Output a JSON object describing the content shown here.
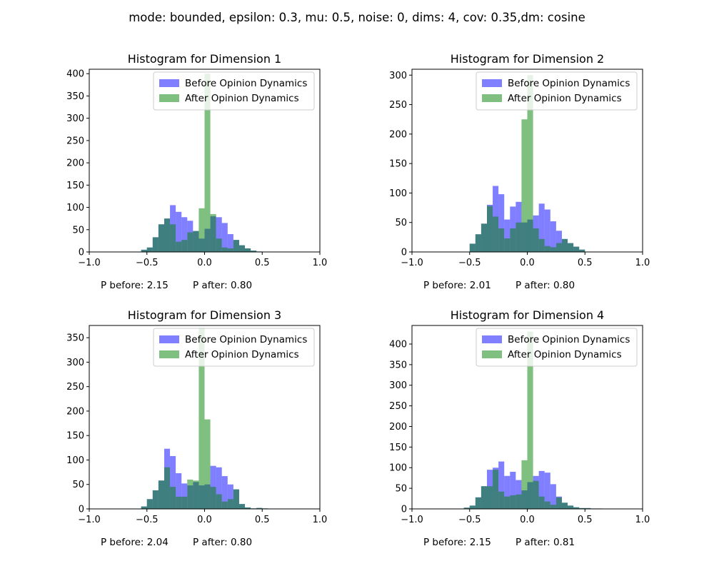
{
  "figure": {
    "suptitle": "mode: bounded, epsilon: 0.3, mu: 0.5, noise: 0, dims: 4, cov: 0.35,dm: cosine"
  },
  "colors": {
    "before": "#0000ff",
    "after": "#008000",
    "before_alpha": 0.5,
    "after_alpha": 0.5
  },
  "chart_data": [
    {
      "type": "bar",
      "title": "Histogram for Dimension 1",
      "legend": [
        "Before Opinion Dynamics",
        "After Opinion Dynamics"
      ],
      "legend_position": "top-right",
      "xlim": [
        -1.0,
        1.0
      ],
      "ylim": [
        0,
        410
      ],
      "xticks": [
        "−1.0",
        "−0.5",
        "0.0",
        "0.5",
        "1.0"
      ],
      "yticks": [
        0,
        50,
        100,
        150,
        200,
        250,
        300,
        350,
        400
      ],
      "stats": {
        "p_before": "P before: 2.15",
        "p_after": "P after: 0.80"
      },
      "before": {
        "bin_edges": [
          -0.55,
          -0.5,
          -0.45,
          -0.4,
          -0.35,
          -0.3,
          -0.25,
          -0.2,
          -0.15,
          -0.1,
          -0.05,
          0.0,
          0.05,
          0.1,
          0.15,
          0.2,
          0.25,
          0.3,
          0.35,
          0.4,
          0.45,
          0.5
        ],
        "counts": [
          5,
          10,
          33,
          62,
          75,
          105,
          90,
          78,
          70,
          47,
          30,
          52,
          80,
          78,
          65,
          40,
          27,
          15,
          8,
          3,
          1
        ]
      },
      "after": {
        "bin_edges": [
          -0.55,
          -0.5,
          -0.45,
          -0.4,
          -0.35,
          -0.3,
          -0.25,
          -0.2,
          -0.15,
          -0.1,
          -0.05,
          0.0,
          0.05,
          0.1,
          0.15,
          0.2,
          0.25,
          0.3,
          0.35,
          0.4,
          0.45,
          0.5
        ],
        "counts": [
          5,
          10,
          33,
          62,
          75,
          62,
          23,
          27,
          44,
          47,
          98,
          400,
          85,
          30,
          10,
          8,
          27,
          15,
          8,
          3,
          1
        ]
      }
    },
    {
      "type": "bar",
      "title": "Histogram for Dimension 2",
      "legend": [
        "Before Opinion Dynamics",
        "After Opinion Dynamics"
      ],
      "legend_position": "top-right",
      "xlim": [
        -1.0,
        1.0
      ],
      "ylim": [
        0,
        310
      ],
      "xticks": [
        "−1.0",
        "−0.5",
        "0.0",
        "0.5",
        "1.0"
      ],
      "yticks": [
        0,
        50,
        100,
        150,
        200,
        250,
        300
      ],
      "stats": {
        "p_before": "P before: 2.01",
        "p_after": "P after: 0.80"
      },
      "before": {
        "bin_edges": [
          -0.5,
          -0.45,
          -0.4,
          -0.35,
          -0.3,
          -0.25,
          -0.2,
          -0.15,
          -0.1,
          -0.05,
          0.0,
          0.05,
          0.1,
          0.15,
          0.2,
          0.25,
          0.3,
          0.35,
          0.4,
          0.45,
          0.5
        ],
        "counts": [
          14,
          30,
          48,
          80,
          112,
          98,
          55,
          77,
          85,
          50,
          55,
          62,
          82,
          72,
          52,
          36,
          22,
          15,
          9,
          4
        ]
      },
      "after": {
        "bin_edges": [
          -0.5,
          -0.45,
          -0.4,
          -0.35,
          -0.3,
          -0.25,
          -0.2,
          -0.15,
          -0.1,
          -0.05,
          0.0,
          0.05,
          0.1,
          0.15,
          0.2,
          0.25,
          0.3,
          0.35,
          0.4,
          0.45,
          0.5
        ],
        "counts": [
          14,
          30,
          48,
          78,
          60,
          40,
          23,
          40,
          50,
          225,
          300,
          40,
          22,
          10,
          8,
          15,
          22,
          15,
          9,
          4
        ]
      }
    },
    {
      "type": "bar",
      "title": "Histogram for Dimension 3",
      "legend": [
        "Before Opinion Dynamics",
        "After Opinion Dynamics"
      ],
      "legend_position": "top-right",
      "xlim": [
        -1.0,
        1.0
      ],
      "ylim": [
        0,
        375
      ],
      "xticks": [
        "−1.0",
        "−0.5",
        "0.0",
        "0.5",
        "1.0"
      ],
      "yticks": [
        0,
        50,
        100,
        150,
        200,
        250,
        300,
        350
      ],
      "stats": {
        "p_before": "P before: 2.04",
        "p_after": "P after: 0.80"
      },
      "before": {
        "bin_edges": [
          -0.55,
          -0.5,
          -0.45,
          -0.4,
          -0.35,
          -0.3,
          -0.25,
          -0.2,
          -0.15,
          -0.1,
          -0.05,
          0.0,
          0.05,
          0.1,
          0.15,
          0.2,
          0.25,
          0.3,
          0.35,
          0.4,
          0.45,
          0.5,
          0.55
        ],
        "counts": [
          5,
          20,
          38,
          58,
          123,
          108,
          73,
          52,
          48,
          55,
          48,
          50,
          88,
          85,
          67,
          50,
          40,
          10,
          3,
          1,
          2,
          1
        ]
      },
      "after": {
        "bin_edges": [
          -0.55,
          -0.5,
          -0.45,
          -0.4,
          -0.35,
          -0.3,
          -0.25,
          -0.2,
          -0.15,
          -0.1,
          -0.05,
          0.0,
          0.05,
          0.1,
          0.15,
          0.2,
          0.25,
          0.3,
          0.35,
          0.4,
          0.45,
          0.5,
          0.55
        ],
        "counts": [
          5,
          20,
          38,
          58,
          85,
          45,
          25,
          25,
          60,
          58,
          370,
          183,
          45,
          30,
          15,
          20,
          40,
          10,
          3,
          1,
          2,
          1
        ]
      }
    },
    {
      "type": "bar",
      "title": "Histogram for Dimension 4",
      "legend": [
        "Before Opinion Dynamics",
        "After Opinion Dynamics"
      ],
      "legend_position": "top-right",
      "xlim": [
        -1.0,
        1.0
      ],
      "ylim": [
        0,
        445
      ],
      "xticks": [
        "−1.0",
        "−0.5",
        "0.0",
        "0.5",
        "1.0"
      ],
      "yticks": [
        0,
        50,
        100,
        150,
        200,
        250,
        300,
        350,
        400
      ],
      "stats": {
        "p_before": "P before: 2.15",
        "p_after": "P after: 0.81"
      },
      "before": {
        "bin_edges": [
          -0.55,
          -0.5,
          -0.45,
          -0.4,
          -0.35,
          -0.3,
          -0.25,
          -0.2,
          -0.15,
          -0.1,
          -0.05,
          0.0,
          0.05,
          0.1,
          0.15,
          0.2,
          0.25,
          0.3,
          0.35,
          0.4,
          0.45,
          0.5,
          0.55,
          0.6,
          0.65
        ],
        "counts": [
          3,
          8,
          28,
          55,
          95,
          100,
          115,
          80,
          90,
          70,
          45,
          65,
          80,
          92,
          88,
          60,
          30,
          15,
          8,
          4,
          2,
          2,
          1,
          1
        ]
      },
      "after": {
        "bin_edges": [
          -0.55,
          -0.5,
          -0.45,
          -0.4,
          -0.35,
          -0.3,
          -0.25,
          -0.2,
          -0.15,
          -0.1,
          -0.05,
          0.0,
          0.05,
          0.1,
          0.15,
          0.2,
          0.25,
          0.3,
          0.35,
          0.4,
          0.45,
          0.5,
          0.55,
          0.6,
          0.65
        ],
        "counts": [
          3,
          8,
          28,
          55,
          55,
          95,
          42,
          30,
          33,
          35,
          118,
          430,
          68,
          30,
          18,
          10,
          28,
          15,
          8,
          4,
          2,
          2,
          1,
          1
        ]
      }
    }
  ]
}
